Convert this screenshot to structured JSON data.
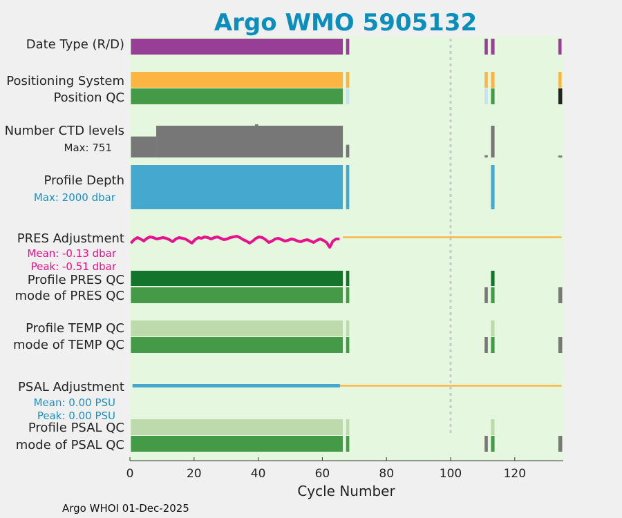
{
  "chart_data": {
    "type": "bar",
    "title": "Argo WMO 5905132",
    "xlabel": "Cycle Number",
    "xlim": [
      0,
      135
    ],
    "xticks": [
      "0",
      "20",
      "40",
      "60",
      "80",
      "100",
      "120"
    ],
    "xtick_values": [
      0,
      20,
      40,
      60,
      80,
      100,
      120
    ],
    "reference_line_x": 100,
    "footer": "Argo WHOI 01-Dec-2025",
    "rows": {
      "date_type": {
        "label": "Date Type (R/D)"
      },
      "positioning_system": {
        "label": "Positioning System"
      },
      "position_qc": {
        "label": "Position QC"
      },
      "ctd_levels": {
        "label": "Number CTD levels",
        "annotation": "Max: 751",
        "max": 751
      },
      "profile_depth": {
        "label": "Profile Depth",
        "annotation": "Max: 2000 dbar",
        "max": 2000
      },
      "pres_adjustment": {
        "label": "PRES Adjustment",
        "mean": "Mean: -0.13 dbar",
        "peak": "Peak: -0.51 dbar"
      },
      "profile_pres_qc": {
        "label": "Profile PRES QC"
      },
      "mode_pres_qc": {
        "label": "mode of PRES QC"
      },
      "profile_temp_qc": {
        "label": "Profile TEMP QC"
      },
      "mode_temp_qc": {
        "label": "mode of TEMP QC"
      },
      "psal_adjustment": {
        "label": "PSAL Adjustment",
        "mean": "Mean: 0.00 PSU",
        "peak": "Peak: 0.00 PSU"
      },
      "profile_psal_qc": {
        "label": "Profile PSAL QC"
      },
      "mode_psal_qc": {
        "label": "mode of PSAL QC"
      }
    },
    "colors": {
      "background": "#e5f8df",
      "purple": "#983e96",
      "orange": "#fcb542",
      "green": "#459a48",
      "dark_green": "#13752c",
      "light_green": "#bcdaab",
      "light_blue": "#c4e4f0",
      "gray": "#777777",
      "black": "#222222",
      "blue": "#44a8cf",
      "magenta": "#e8108c"
    }
  }
}
